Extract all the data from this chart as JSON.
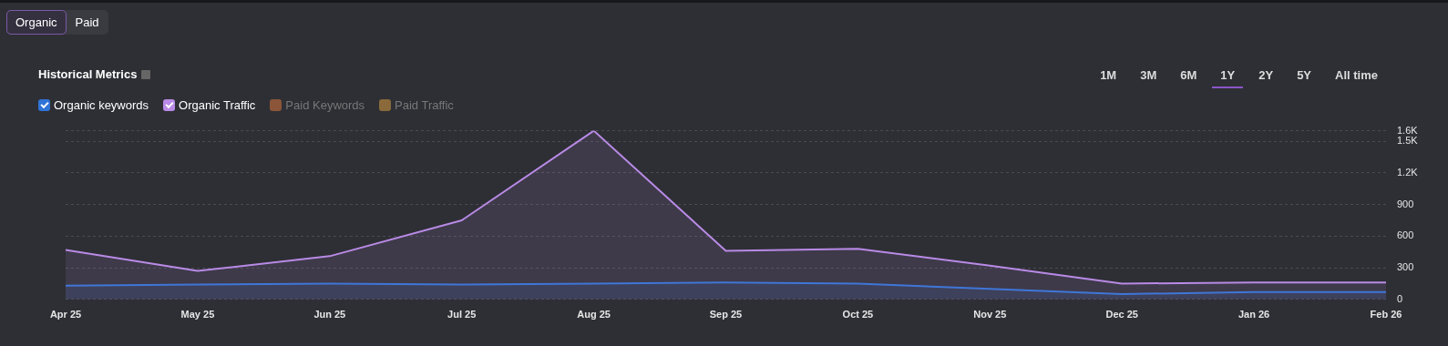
{
  "chart_data": {
    "type": "area",
    "title": "Historical Metrics",
    "annotations": [
      "Organic",
      "Paid",
      "1M",
      "3M",
      "6M",
      "1Y",
      "2Y",
      "5Y",
      "All time"
    ],
    "categories": [
      "Apr 25",
      "May 25",
      "Jun 25",
      "Jul 25",
      "Aug 25",
      "Sep 25",
      "Oct 25",
      "Nov 25",
      "Dec 25",
      "Jan 26",
      "Feb 26"
    ],
    "series": [
      {
        "name": "Organic keywords",
        "color": "#2f74d6",
        "values": [
          130,
          140,
          150,
          140,
          150,
          160,
          150,
          100,
          50,
          70,
          70
        ]
      },
      {
        "name": "Organic Traffic",
        "color": "#b98ae6",
        "values": [
          470,
          270,
          410,
          750,
          1600,
          460,
          480,
          320,
          150,
          160,
          160
        ]
      },
      {
        "name": "Paid Keywords",
        "color": "#8a5538",
        "values": [
          null,
          null,
          null,
          null,
          null,
          null,
          null,
          null,
          null,
          null,
          null
        ]
      },
      {
        "name": "Paid Traffic",
        "color": "#8a6a3a",
        "values": [
          null,
          null,
          null,
          null,
          null,
          null,
          null,
          null,
          null,
          null,
          null
        ]
      }
    ],
    "ylim": [
      0,
      1600
    ],
    "yticks": [
      0,
      300,
      600,
      900,
      {
        "value": 1200,
        "label": "1.2K"
      },
      {
        "value": 1500,
        "label": "1.5K"
      },
      {
        "value": 1600,
        "label": "1.6K"
      }
    ],
    "grid": "y",
    "legend": "top left",
    "marker": "none",
    "line_style": "solid"
  }
}
